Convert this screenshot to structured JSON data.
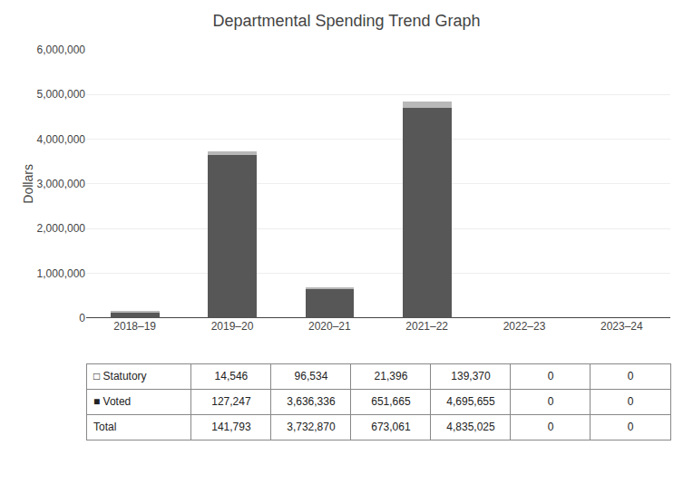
{
  "chart_data": {
    "type": "bar",
    "title": "Departmental Spending Trend Graph",
    "categories": [
      "2018–19",
      "2019–20",
      "2020–21",
      "2021–22",
      "2022–23",
      "2023–24"
    ],
    "series": [
      {
        "name": "Voted",
        "color": "#575757",
        "values": [
          127247,
          3636336,
          651665,
          4695655,
          0,
          0
        ]
      },
      {
        "name": "Statutory",
        "color": "#b8b8b8",
        "values": [
          14546,
          96534,
          21396,
          139370,
          0,
          0
        ]
      }
    ],
    "stacked": true,
    "ylabel": "Dollars",
    "ylim": [
      0,
      6000000
    ],
    "yticks": [
      0,
      {
        "value": 1000000,
        "label": "1,000,000"
      },
      {
        "value": 2000000,
        "label": "2,000,000"
      },
      {
        "value": 3000000,
        "label": "3,000,000"
      },
      {
        "value": 4000000,
        "label": "4,000,000"
      },
      {
        "value": 5000000,
        "label": "5,000,000"
      },
      {
        "value": 6000000,
        "label": "6,000,000"
      }
    ],
    "grid": true,
    "table": {
      "rows": [
        {
          "label": "□ Statutory",
          "values": [
            14546,
            96534,
            21396,
            139370,
            0,
            0
          ],
          "value_labels": [
            "14,546",
            "96,534",
            "21,396",
            "139,370",
            "0",
            "0"
          ]
        },
        {
          "label": "■ Voted",
          "values": [
            127247,
            3636336,
            651665,
            4695655,
            0,
            0
          ],
          "value_labels": [
            "127,247",
            "3,636,336",
            "651,665",
            "4,695,655",
            "0",
            "0"
          ]
        },
        {
          "label": "Total",
          "values": [
            141793,
            3732870,
            673061,
            4835025,
            0,
            0
          ],
          "value_labels": [
            "141,793",
            "3,732,870",
            "673,061",
            "4,835,025",
            "0",
            "0"
          ]
        }
      ]
    }
  }
}
